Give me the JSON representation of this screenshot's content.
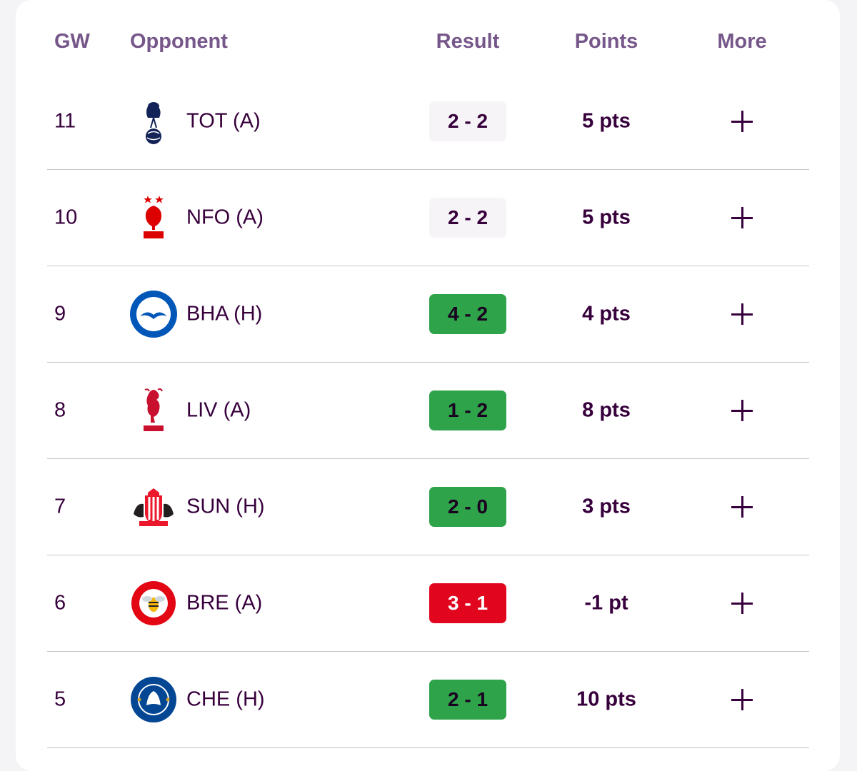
{
  "header": {
    "gw": "GW",
    "opponent": "Opponent",
    "result": "Result",
    "points": "Points",
    "more": "More"
  },
  "colors": {
    "header_text": "#76578a",
    "primary_text": "#37003c",
    "win": "#2ea34a",
    "loss": "#e1061e",
    "draw": "#f6f4f7"
  },
  "rows": [
    {
      "gw": "11",
      "opponent": "TOT (A)",
      "crest": "tottenham-crest",
      "result": "2 - 2",
      "outcome": "draw",
      "points": "5 pts"
    },
    {
      "gw": "10",
      "opponent": "NFO (A)",
      "crest": "nottingham-forest-crest",
      "result": "2 - 2",
      "outcome": "draw",
      "points": "5 pts"
    },
    {
      "gw": "9",
      "opponent": "BHA (H)",
      "crest": "brighton-crest",
      "result": "4 - 2",
      "outcome": "win",
      "points": "4 pts"
    },
    {
      "gw": "8",
      "opponent": "LIV (A)",
      "crest": "liverpool-crest",
      "result": "1 - 2",
      "outcome": "win",
      "points": "8 pts"
    },
    {
      "gw": "7",
      "opponent": "SUN (H)",
      "crest": "sunderland-crest",
      "result": "2 - 0",
      "outcome": "win",
      "points": "3 pts"
    },
    {
      "gw": "6",
      "opponent": "BRE (A)",
      "crest": "brentford-crest",
      "result": "3 - 1",
      "outcome": "loss",
      "points": "-1 pt"
    },
    {
      "gw": "5",
      "opponent": "CHE (H)",
      "crest": "chelsea-crest",
      "result": "2 - 1",
      "outcome": "win",
      "points": "10 pts"
    }
  ]
}
